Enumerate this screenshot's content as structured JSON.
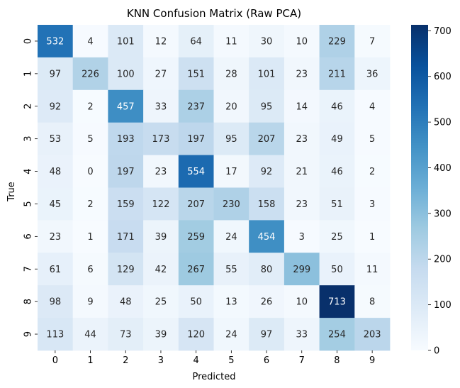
{
  "chart_data": {
    "type": "heatmap",
    "title": "KNN Confusion Matrix (Raw PCA)",
    "xlabel": "Predicted",
    "ylabel": "True",
    "x_categories": [
      "0",
      "1",
      "2",
      "3",
      "4",
      "5",
      "6",
      "7",
      "8",
      "9"
    ],
    "y_categories": [
      "0",
      "1",
      "2",
      "3",
      "4",
      "5",
      "6",
      "7",
      "8",
      "9"
    ],
    "values": [
      [
        532,
        4,
        101,
        12,
        64,
        11,
        30,
        10,
        229,
        7
      ],
      [
        97,
        226,
        100,
        27,
        151,
        28,
        101,
        23,
        211,
        36
      ],
      [
        92,
        2,
        457,
        33,
        237,
        20,
        95,
        14,
        46,
        4
      ],
      [
        53,
        5,
        193,
        173,
        197,
        95,
        207,
        23,
        49,
        5
      ],
      [
        48,
        0,
        197,
        23,
        554,
        17,
        92,
        21,
        46,
        2
      ],
      [
        45,
        2,
        159,
        122,
        207,
        230,
        158,
        23,
        51,
        3
      ],
      [
        23,
        1,
        171,
        39,
        259,
        24,
        454,
        3,
        25,
        1
      ],
      [
        61,
        6,
        129,
        42,
        267,
        55,
        80,
        299,
        50,
        11
      ],
      [
        98,
        9,
        48,
        25,
        50,
        13,
        26,
        10,
        713,
        8
      ],
      [
        113,
        44,
        73,
        39,
        120,
        24,
        97,
        33,
        254,
        203
      ]
    ],
    "colorbar": {
      "min": 0,
      "max": 713,
      "ticks": [
        "0",
        "100",
        "200",
        "300",
        "400",
        "500",
        "600",
        "700"
      ]
    },
    "colormap": [
      "#f7fbff",
      "#deebf7",
      "#c6dbef",
      "#9ecae1",
      "#6baed6",
      "#4292c6",
      "#2171b5",
      "#08519c",
      "#08306b"
    ],
    "grid": false,
    "legend": "colorbar-right"
  }
}
